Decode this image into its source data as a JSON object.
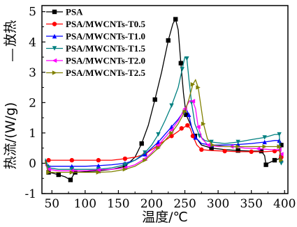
{
  "chart_data": {
    "type": "line",
    "xlabel": "温度/℃",
    "ylabel": "热流/(W/g)",
    "y_annotation": "放热",
    "xlim": [
      35,
      405
    ],
    "ylim": [
      -1,
      5.2
    ],
    "xticks": [
      50,
      100,
      150,
      200,
      250,
      300,
      350,
      400
    ],
    "yticks": [
      -1,
      0,
      1,
      2,
      3,
      4,
      5
    ],
    "legend_position": "top-left",
    "series": [
      {
        "name": "PSA",
        "color": "#000000",
        "marker": "square",
        "points": [
          [
            40,
            0.1
          ],
          [
            45,
            -0.3
          ],
          [
            50,
            -0.32
          ],
          [
            60,
            -0.38
          ],
          [
            70,
            -0.45
          ],
          [
            78,
            -0.55
          ],
          [
            82,
            -0.4
          ],
          [
            85,
            -0.3
          ],
          [
            100,
            -0.28
          ],
          [
            120,
            -0.25
          ],
          [
            140,
            -0.2
          ],
          [
            160,
            -0.1
          ],
          [
            175,
            0.2
          ],
          [
            185,
            0.65
          ],
          [
            195,
            1.25
          ],
          [
            205,
            2.1
          ],
          [
            215,
            3.0
          ],
          [
            225,
            4.05
          ],
          [
            232,
            4.6
          ],
          [
            236,
            4.75
          ],
          [
            240,
            4.4
          ],
          [
            244,
            3.3
          ],
          [
            248,
            2.3
          ],
          [
            252,
            1.6
          ],
          [
            258,
            1.3
          ],
          [
            265,
            0.9
          ],
          [
            275,
            0.6
          ],
          [
            290,
            0.5
          ],
          [
            310,
            0.45
          ],
          [
            330,
            0.42
          ],
          [
            350,
            0.4
          ],
          [
            365,
            0.4
          ],
          [
            370,
            0.25
          ],
          [
            372,
            -0.05
          ],
          [
            375,
            0.0
          ],
          [
            385,
            0.1
          ],
          [
            392,
            0.15
          ],
          [
            395,
            0.6
          ]
        ]
      },
      {
        "name": "PSA/MWCNTs-T0.5",
        "color": "#ff0000",
        "marker": "circle",
        "points": [
          [
            40,
            0.05
          ],
          [
            45,
            0.1
          ],
          [
            60,
            0.1
          ],
          [
            80,
            0.1
          ],
          [
            100,
            0.1
          ],
          [
            120,
            0.1
          ],
          [
            140,
            0.1
          ],
          [
            160,
            0.15
          ],
          [
            175,
            0.2
          ],
          [
            190,
            0.3
          ],
          [
            200,
            0.45
          ],
          [
            210,
            0.6
          ],
          [
            220,
            0.75
          ],
          [
            230,
            0.9
          ],
          [
            240,
            1.05
          ],
          [
            245,
            1.15
          ],
          [
            250,
            1.2
          ],
          [
            254,
            1.25
          ],
          [
            258,
            1.15
          ],
          [
            262,
            0.9
          ],
          [
            268,
            0.6
          ],
          [
            275,
            0.45
          ],
          [
            290,
            0.42
          ],
          [
            310,
            0.4
          ],
          [
            330,
            0.38
          ],
          [
            350,
            0.38
          ],
          [
            370,
            0.38
          ],
          [
            385,
            0.4
          ],
          [
            392,
            0.42
          ],
          [
            395,
            0.2
          ]
        ]
      },
      {
        "name": "PSA/MWCNTs-T1.0",
        "color": "#0000ff",
        "marker": "triangle-up",
        "points": [
          [
            40,
            0.0
          ],
          [
            45,
            -0.1
          ],
          [
            60,
            -0.1
          ],
          [
            80,
            -0.1
          ],
          [
            100,
            -0.1
          ],
          [
            120,
            -0.08
          ],
          [
            140,
            -0.05
          ],
          [
            160,
            0.0
          ],
          [
            175,
            0.1
          ],
          [
            190,
            0.3
          ],
          [
            200,
            0.5
          ],
          [
            210,
            0.7
          ],
          [
            220,
            0.95
          ],
          [
            230,
            1.2
          ],
          [
            240,
            1.45
          ],
          [
            248,
            1.7
          ],
          [
            252,
            1.8
          ],
          [
            256,
            1.6
          ],
          [
            260,
            1.2
          ],
          [
            266,
            0.85
          ],
          [
            275,
            0.65
          ],
          [
            290,
            0.6
          ],
          [
            310,
            0.6
          ],
          [
            330,
            0.62
          ],
          [
            350,
            0.65
          ],
          [
            370,
            0.7
          ],
          [
            385,
            0.75
          ],
          [
            392,
            0.75
          ],
          [
            395,
            0.1
          ]
        ]
      },
      {
        "name": "PSA/MWCNTs-T1.5",
        "color": "#008080",
        "marker": "triangle-down",
        "points": [
          [
            40,
            0.15
          ],
          [
            45,
            -0.15
          ],
          [
            60,
            -0.2
          ],
          [
            80,
            -0.2
          ],
          [
            100,
            -0.2
          ],
          [
            120,
            -0.2
          ],
          [
            140,
            -0.15
          ],
          [
            160,
            -0.05
          ],
          [
            175,
            0.1
          ],
          [
            190,
            0.35
          ],
          [
            200,
            0.6
          ],
          [
            210,
            0.95
          ],
          [
            220,
            1.4
          ],
          [
            230,
            1.9
          ],
          [
            240,
            2.5
          ],
          [
            246,
            3.1
          ],
          [
            250,
            3.5
          ],
          [
            253,
            3.45
          ],
          [
            256,
            2.8
          ],
          [
            260,
            2.0
          ],
          [
            265,
            1.3
          ],
          [
            272,
            0.9
          ],
          [
            280,
            0.75
          ],
          [
            290,
            0.7
          ],
          [
            310,
            0.65
          ],
          [
            330,
            0.7
          ],
          [
            350,
            0.78
          ],
          [
            370,
            0.85
          ],
          [
            385,
            0.95
          ],
          [
            392,
            0.95
          ],
          [
            395,
            0.0
          ]
        ]
      },
      {
        "name": "PSA/MWCNTs-T2.0",
        "color": "#ff00ff",
        "marker": "triangle-left",
        "points": [
          [
            40,
            -0.05
          ],
          [
            45,
            -0.2
          ],
          [
            60,
            -0.25
          ],
          [
            80,
            -0.25
          ],
          [
            100,
            -0.25
          ],
          [
            120,
            -0.22
          ],
          [
            140,
            -0.2
          ],
          [
            160,
            -0.15
          ],
          [
            175,
            -0.05
          ],
          [
            190,
            0.15
          ],
          [
            200,
            0.35
          ],
          [
            210,
            0.6
          ],
          [
            220,
            0.85
          ],
          [
            230,
            1.1
          ],
          [
            240,
            1.4
          ],
          [
            250,
            1.8
          ],
          [
            257,
            2.05
          ],
          [
            262,
            2.05
          ],
          [
            266,
            1.8
          ],
          [
            270,
            1.2
          ],
          [
            276,
            0.8
          ],
          [
            285,
            0.6
          ],
          [
            300,
            0.55
          ],
          [
            320,
            0.55
          ],
          [
            340,
            0.5
          ],
          [
            360,
            0.48
          ],
          [
            380,
            0.45
          ],
          [
            392,
            0.45
          ],
          [
            395,
            0.3
          ]
        ]
      },
      {
        "name": "PSA/MWCNTs-T2.5",
        "color": "#808000",
        "marker": "triangle-right",
        "points": [
          [
            40,
            0.05
          ],
          [
            45,
            -0.3
          ],
          [
            60,
            -0.3
          ],
          [
            80,
            -0.3
          ],
          [
            100,
            -0.3
          ],
          [
            120,
            -0.3
          ],
          [
            140,
            -0.28
          ],
          [
            160,
            -0.2
          ],
          [
            175,
            -0.1
          ],
          [
            190,
            0.1
          ],
          [
            200,
            0.3
          ],
          [
            210,
            0.5
          ],
          [
            220,
            0.75
          ],
          [
            230,
            1.0
          ],
          [
            240,
            1.3
          ],
          [
            250,
            1.7
          ],
          [
            256,
            2.1
          ],
          [
            262,
            2.6
          ],
          [
            266,
            2.75
          ],
          [
            270,
            2.5
          ],
          [
            274,
            1.9
          ],
          [
            278,
            1.3
          ],
          [
            284,
            0.8
          ],
          [
            292,
            0.6
          ],
          [
            310,
            0.55
          ],
          [
            330,
            0.55
          ],
          [
            350,
            0.55
          ],
          [
            370,
            0.55
          ],
          [
            385,
            0.55
          ],
          [
            392,
            0.55
          ],
          [
            395,
            0.1
          ]
        ]
      }
    ]
  }
}
